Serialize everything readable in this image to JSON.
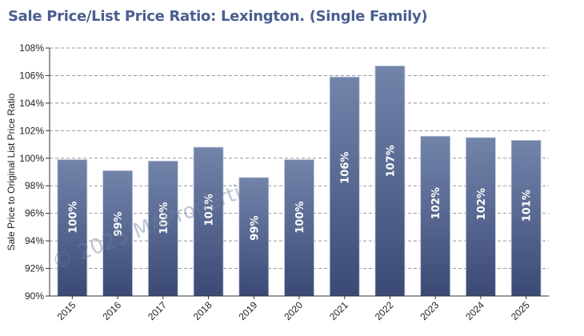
{
  "title": "Sale Price/List Price Ratio: Lexington. (Single Family)",
  "watermark": "© 2025 MAProperties",
  "colors": {
    "bar_top": "#7384ab",
    "bar_bottom": "#3b4a75",
    "grid": "#999999",
    "title": "#4a5f8e"
  },
  "chart_data": {
    "type": "bar",
    "title": "Sale Price/List Price Ratio: Lexington. (Single Family)",
    "xlabel": "",
    "ylabel": "Sale Price to Original List Price Ratio",
    "ylim": [
      90,
      108
    ],
    "yticks": [
      90,
      92,
      94,
      96,
      98,
      100,
      102,
      104,
      106,
      108
    ],
    "ytick_labels": [
      "90%",
      "92%",
      "94%",
      "96%",
      "98%",
      "100%",
      "102%",
      "104%",
      "106%",
      "108%"
    ],
    "categories": [
      "2015",
      "2016",
      "2017",
      "2018",
      "2019",
      "2020",
      "2021",
      "2022",
      "2023",
      "2024",
      "2025"
    ],
    "values": [
      99.9,
      99.1,
      99.8,
      100.8,
      98.6,
      99.9,
      105.9,
      106.7,
      101.6,
      101.5,
      101.3
    ],
    "data_labels": [
      "100%",
      "99%",
      "100%",
      "101%",
      "99%",
      "100%",
      "106%",
      "107%",
      "102%",
      "102%",
      "101%"
    ],
    "grid": true,
    "legend": "none"
  }
}
